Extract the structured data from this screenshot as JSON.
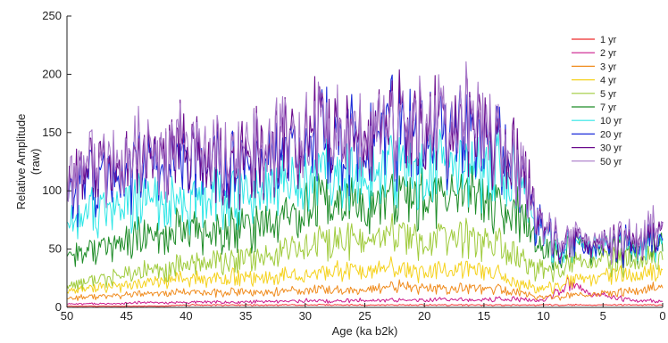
{
  "chart_data": {
    "type": "line",
    "xlabel": "Age (ka b2k)",
    "ylabel": [
      "Relative Amplitude",
      "(raw)"
    ],
    "xlim": [
      50,
      0
    ],
    "ylim": [
      0,
      250
    ],
    "x_reversed": true,
    "xticks": [
      50,
      45,
      40,
      35,
      30,
      25,
      20,
      15,
      10,
      5,
      0
    ],
    "yticks": [
      0,
      50,
      100,
      150,
      200,
      250
    ],
    "grid": false,
    "legend_position": "top-right",
    "x": [
      50,
      48,
      46,
      44,
      42,
      40,
      38,
      36,
      34,
      32,
      30,
      28,
      26,
      24,
      22,
      20,
      18,
      16,
      14,
      12,
      10,
      8,
      6,
      4,
      2,
      0
    ],
    "series": [
      {
        "name": "1 yr",
        "color": "#ee2b2b",
        "values": [
          1,
          1,
          1,
          1,
          1,
          2,
          2,
          2,
          2,
          2,
          2,
          2,
          2,
          2,
          2,
          2,
          2,
          2,
          2,
          2,
          2,
          2,
          2,
          2,
          2,
          2
        ]
      },
      {
        "name": "2 yr",
        "color": "#cc1a8c",
        "values": [
          3,
          3,
          3,
          4,
          4,
          4,
          5,
          4,
          5,
          5,
          6,
          5,
          6,
          6,
          6,
          6,
          7,
          6,
          7,
          7,
          5,
          20,
          12,
          8,
          6,
          5
        ]
      },
      {
        "name": "3 yr",
        "color": "#f08c1e",
        "values": [
          8,
          9,
          10,
          11,
          12,
          13,
          12,
          13,
          12,
          14,
          15,
          15,
          14,
          16,
          18,
          17,
          15,
          17,
          16,
          12,
          8,
          10,
          11,
          12,
          14,
          18
        ]
      },
      {
        "name": "4 yr",
        "color": "#f5d21e",
        "values": [
          14,
          16,
          18,
          20,
          22,
          24,
          23,
          26,
          25,
          27,
          28,
          30,
          32,
          33,
          32,
          31,
          30,
          33,
          28,
          20,
          15,
          22,
          25,
          27,
          28,
          30
        ]
      },
      {
        "name": "5 yr",
        "color": "#9fcb3c",
        "values": [
          20,
          22,
          26,
          30,
          32,
          36,
          38,
          40,
          42,
          48,
          52,
          55,
          60,
          58,
          62,
          56,
          58,
          60,
          55,
          42,
          30,
          36,
          40,
          38,
          40,
          42
        ]
      },
      {
        "name": "7 yr",
        "color": "#1e8c28",
        "values": [
          45,
          48,
          52,
          58,
          60,
          66,
          62,
          65,
          70,
          75,
          85,
          88,
          90,
          85,
          95,
          92,
          90,
          100,
          85,
          80,
          45,
          48,
          52,
          50,
          52,
          55
        ]
      },
      {
        "name": "10 yr",
        "color": "#2ee6e6",
        "values": [
          75,
          80,
          84,
          90,
          86,
          88,
          92,
          95,
          100,
          105,
          110,
          112,
          108,
          115,
          118,
          112,
          120,
          122,
          118,
          110,
          55,
          52,
          55,
          50,
          52,
          58
        ]
      },
      {
        "name": "20 yr",
        "color": "#1a2ad9",
        "values": [
          100,
          112,
          108,
          118,
          122,
          125,
          120,
          118,
          128,
          135,
          138,
          142,
          140,
          145,
          150,
          148,
          145,
          152,
          140,
          115,
          60,
          55,
          52,
          50,
          55,
          62
        ]
      },
      {
        "name": "30 yr",
        "color": "#6a0a8c",
        "values": [
          108,
          120,
          115,
          125,
          130,
          135,
          125,
          122,
          135,
          140,
          150,
          148,
          146,
          150,
          155,
          152,
          150,
          158,
          142,
          118,
          62,
          58,
          55,
          54,
          58,
          68
        ]
      },
      {
        "name": "50 yr",
        "color": "#a878c8",
        "values": [
          112,
          124,
          118,
          128,
          132,
          138,
          128,
          125,
          138,
          145,
          152,
          150,
          148,
          152,
          158,
          155,
          152,
          160,
          145,
          120,
          65,
          60,
          58,
          56,
          60,
          72
        ]
      }
    ]
  }
}
